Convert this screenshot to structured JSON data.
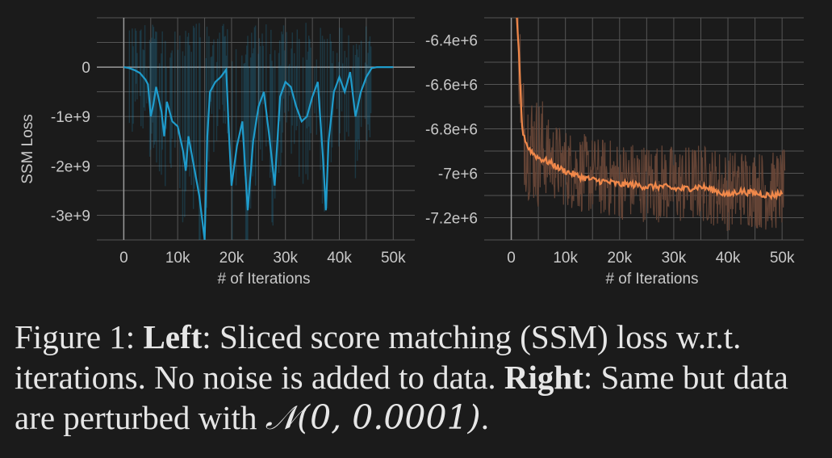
{
  "chart_data": [
    {
      "type": "line",
      "title": "",
      "xlabel": "# of Iterations",
      "ylabel": "SSM Loss",
      "xlim": [
        -5000,
        54000
      ],
      "ylim": [
        -3500000000,
        1000000000
      ],
      "xticks": [
        0,
        10000,
        20000,
        30000,
        40000,
        50000
      ],
      "xtick_labels": [
        "0",
        "10k",
        "20k",
        "30k",
        "40k",
        "50k"
      ],
      "yticks": [
        0,
        -1000000000,
        -2000000000,
        -3000000000
      ],
      "ytick_labels": [
        "0",
        "-1e+9",
        "-2e+9",
        "-3e+9"
      ],
      "grid": true,
      "legend": "none",
      "colors": {
        "smoothed": "#1f9ccc",
        "raw": "#1f9ccc"
      },
      "series": [
        {
          "x": [
            0,
            1000,
            2000,
            3000,
            4000,
            4500,
            5000,
            5500,
            6000,
            7000,
            7500,
            8000,
            9000,
            10000,
            11000,
            11500,
            12000,
            13000,
            14000,
            15000,
            15500,
            16000,
            17000,
            18000,
            19000,
            19500,
            20000,
            21000,
            22000,
            22500,
            23000,
            24000,
            25000,
            26000,
            27000,
            28000,
            28500,
            29000,
            30000,
            31000,
            32000,
            33000,
            34000,
            35000,
            36000,
            37000,
            37500,
            38000,
            39000,
            40000,
            41000,
            42000,
            43000,
            44000,
            45000,
            46000,
            47000,
            48000,
            49000,
            50000
          ],
          "values": [
            0,
            -20000000,
            -60000000,
            -120000000,
            -250000000,
            -350000000,
            -1000000000,
            -750000000,
            -400000000,
            -900000000,
            -1400000000,
            -700000000,
            -1100000000,
            -1200000000,
            -1700000000,
            -2100000000,
            -1400000000,
            -2000000000,
            -2600000000,
            -3500000000,
            -1400000000,
            -500000000,
            -300000000,
            -200000000,
            -50000000,
            -1300000000,
            -2400000000,
            -1600000000,
            -1100000000,
            -2000000000,
            -2900000000,
            -1500000000,
            -800000000,
            -500000000,
            -1400000000,
            -2400000000,
            -1500000000,
            -600000000,
            -300000000,
            -400000000,
            -800000000,
            -1100000000,
            -1000000000,
            -600000000,
            -300000000,
            -1900000000,
            -2900000000,
            -1500000000,
            -500000000,
            -200000000,
            -500000000,
            -100000000,
            -1000000000,
            -500000000,
            -200000000,
            -20000000,
            0,
            0,
            0,
            0
          ]
        }
      ]
    },
    {
      "type": "line",
      "title": "",
      "xlabel": "# of Iterations",
      "ylabel": "",
      "xlim": [
        -5000,
        54000
      ],
      "ylim": [
        -7300000,
        -6300000
      ],
      "xticks": [
        0,
        10000,
        20000,
        30000,
        40000,
        50000
      ],
      "xtick_labels": [
        "0",
        "10k",
        "20k",
        "30k",
        "40k",
        "50k"
      ],
      "yticks": [
        -6400000,
        -6600000,
        -6800000,
        -7000000,
        -7200000
      ],
      "ytick_labels": [
        "-6.4e+6",
        "-6.6e+6",
        "-6.8e+6",
        "-7e+6",
        "-7.2e+6"
      ],
      "grid": true,
      "legend": "none",
      "colors": {
        "smoothed": "#f0884a",
        "raw": "#6b4838"
      },
      "series": [
        {
          "x": [
            1000,
            1500,
            2000,
            3000,
            4000,
            5000,
            7000,
            9000,
            10000,
            12000,
            15000,
            18000,
            20000,
            22000,
            25000,
            28000,
            30000,
            32000,
            35000,
            38000,
            40000,
            42000,
            45000,
            48000,
            50000
          ],
          "values": [
            -6300000,
            -6500000,
            -6800000,
            -6880000,
            -6910000,
            -6930000,
            -6950000,
            -6980000,
            -6990000,
            -7010000,
            -7030000,
            -7040000,
            -7050000,
            -7050000,
            -7060000,
            -7060000,
            -7070000,
            -7070000,
            -7060000,
            -7080000,
            -7100000,
            -7080000,
            -7090000,
            -7100000,
            -7090000
          ]
        }
      ]
    }
  ],
  "caption": {
    "prefix": "Figure 1: ",
    "left_label": "Left",
    "left_text": ": Sliced score matching (SSM) loss w.r.t. iterations. No noise is added to data. ",
    "right_label": "Right",
    "right_text": ": Same but data are perturbed with ",
    "math": "𝒩(0, 0.0001)",
    "suffix": "."
  }
}
